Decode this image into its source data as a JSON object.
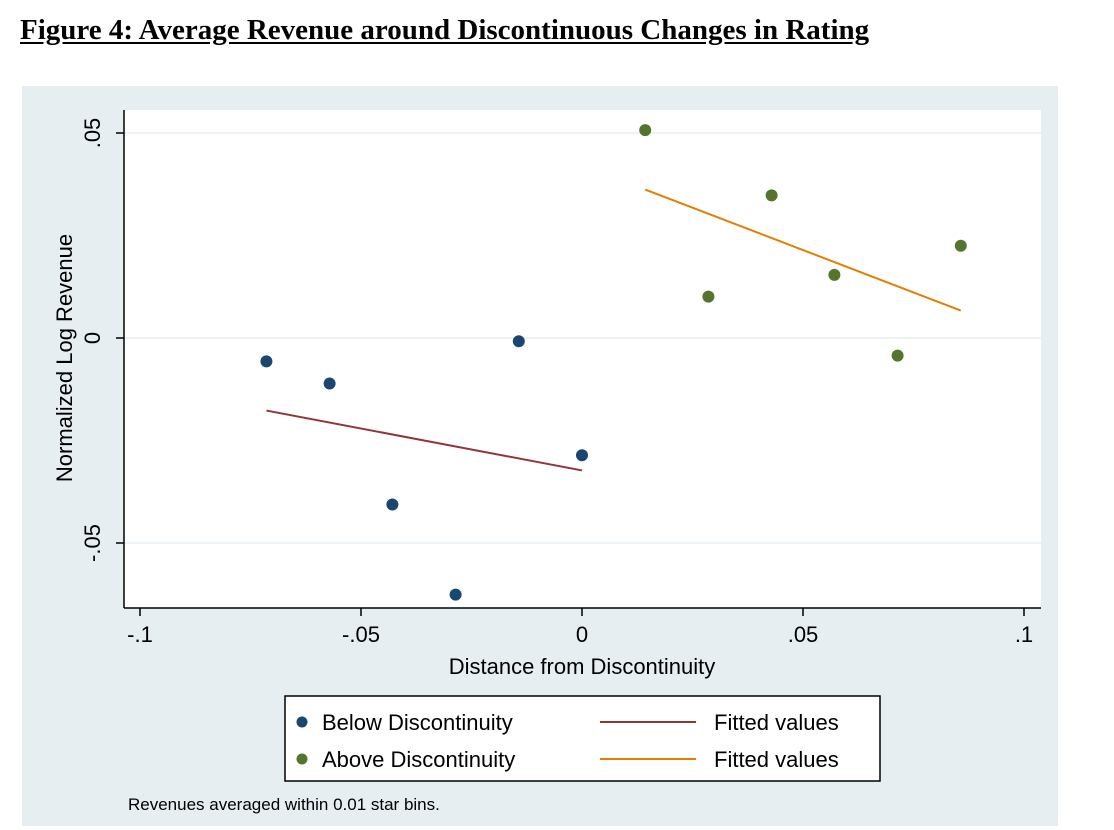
{
  "figure": {
    "title": "Figure 4: Average Revenue around Discontinuous Changes in Rating"
  },
  "colors": {
    "below": "#1a476f",
    "above": "#55752f",
    "fit_below": "#90353b",
    "fit_above": "#e37e00",
    "plot_bg": "#ffffff",
    "outer_bg": "#e6eef2",
    "grid": "#e6eef2"
  },
  "chart_data": {
    "type": "scatter",
    "title": "",
    "xlabel": "Distance from Discontinuity",
    "ylabel": "Normalized Log Revenue",
    "xlim": [
      -0.1,
      0.1
    ],
    "ylim": [
      -0.065,
      0.052
    ],
    "x_ticks": [
      -0.1,
      -0.05,
      0,
      0.05,
      0.1
    ],
    "x_tick_labels": [
      "-.1",
      "-.05",
      "0",
      ".05",
      ".1"
    ],
    "y_ticks": [
      -0.05,
      0,
      0.05
    ],
    "y_tick_labels": [
      "-.05",
      "0",
      ".05"
    ],
    "grid": true,
    "legend_position": "bottom",
    "note": "Revenues averaged within 0.01 star bins.",
    "series": [
      {
        "name": "Below Discontinuity",
        "kind": "scatter",
        "color_key": "below",
        "points": [
          [
            -0.0714,
            -0.0057
          ],
          [
            -0.0571,
            -0.0111
          ],
          [
            -0.0429,
            -0.0406
          ],
          [
            -0.0286,
            -0.0626
          ],
          [
            -0.0143,
            -0.0008
          ],
          [
            0.0,
            -0.0286
          ]
        ]
      },
      {
        "name": "Above Discontinuity",
        "kind": "scatter",
        "color_key": "above",
        "points": [
          [
            0.0143,
            0.0507
          ],
          [
            0.0286,
            0.0101
          ],
          [
            0.0429,
            0.0348
          ],
          [
            0.0571,
            0.0154
          ],
          [
            0.0714,
            -0.0043
          ],
          [
            0.0857,
            0.0225
          ]
        ]
      },
      {
        "name": "Fitted values",
        "kind": "line",
        "color_key": "fit_below",
        "points": [
          [
            -0.0714,
            -0.0177
          ],
          [
            0.0,
            -0.0323
          ]
        ]
      },
      {
        "name": "Fitted values",
        "kind": "line",
        "color_key": "fit_above",
        "points": [
          [
            0.0143,
            0.0362
          ],
          [
            0.0857,
            0.0067
          ]
        ]
      }
    ]
  }
}
